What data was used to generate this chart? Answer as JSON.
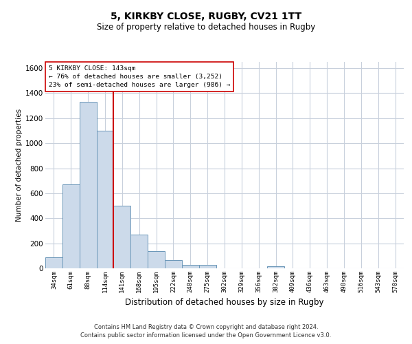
{
  "title1": "5, KIRKBY CLOSE, RUGBY, CV21 1TT",
  "title2": "Size of property relative to detached houses in Rugby",
  "xlabel": "Distribution of detached houses by size in Rugby",
  "ylabel": "Number of detached properties",
  "footer1": "Contains HM Land Registry data © Crown copyright and database right 2024.",
  "footer2": "Contains public sector information licensed under the Open Government Licence v3.0.",
  "annotation_line1": "5 KIRKBY CLOSE: 143sqm",
  "annotation_line2": "← 76% of detached houses are smaller (3,252)",
  "annotation_line3": "23% of semi-detached houses are larger (986) →",
  "property_bin_index": 4,
  "bar_color": "#ccdaea",
  "bar_edgecolor": "#6a96b8",
  "vertical_line_color": "#cc0000",
  "annotation_box_edgecolor": "#cc0000",
  "background_color": "#ffffff",
  "grid_color": "#c8d0dc",
  "categories": [
    "34sqm",
    "61sqm",
    "88sqm",
    "114sqm",
    "141sqm",
    "168sqm",
    "195sqm",
    "222sqm",
    "248sqm",
    "275sqm",
    "302sqm",
    "329sqm",
    "356sqm",
    "382sqm",
    "409sqm",
    "436sqm",
    "463sqm",
    "490sqm",
    "516sqm",
    "543sqm",
    "570sqm"
  ],
  "values": [
    90,
    670,
    1330,
    1100,
    500,
    270,
    140,
    65,
    30,
    30,
    0,
    0,
    0,
    15,
    0,
    0,
    0,
    0,
    0,
    0,
    0
  ],
  "ylim": [
    0,
    1650
  ],
  "yticks": [
    0,
    200,
    400,
    600,
    800,
    1000,
    1200,
    1400,
    1600
  ]
}
